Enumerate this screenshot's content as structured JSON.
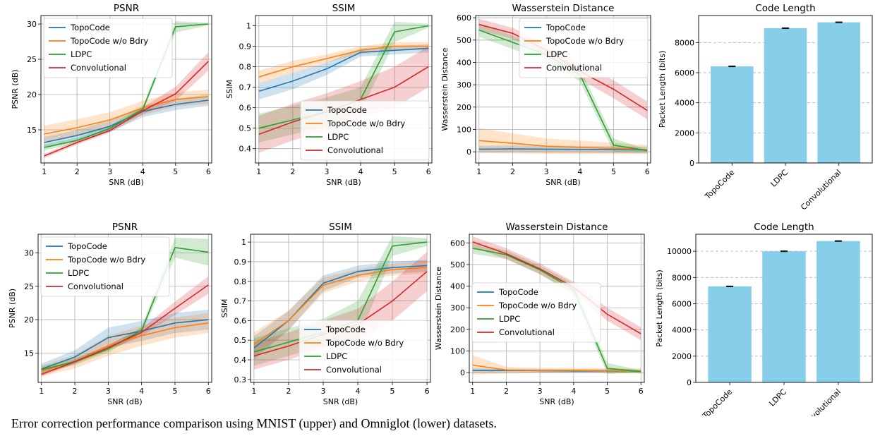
{
  "caption": "Error correction performance comparison using MNIST (upper) and Omniglot (lower) datasets.",
  "colors": {
    "TopoCode": "#1f77b4",
    "TopoCode w/o Bdry": "#ff7f0e",
    "LDPC": "#2ca02c",
    "Convolutional": "#d62728",
    "bar": "#87ceeb"
  },
  "chart_data": [
    {
      "type": "line",
      "row": "upper",
      "title": "PSNR",
      "xlabel": "SNR (dB)",
      "ylabel": "PSNR (dB)",
      "xlim": [
        0.9,
        6.1
      ],
      "ylim": [
        10.3,
        31.2
      ],
      "xticks": [
        1,
        2,
        3,
        4,
        5,
        6
      ],
      "yticks": [
        15,
        20,
        25,
        30
      ],
      "grid": true,
      "legend": "top-left",
      "x": [
        1,
        2,
        3,
        4,
        5,
        6
      ],
      "series": [
        {
          "name": "TopoCode",
          "values": [
            13.2,
            14.2,
            15.5,
            17.6,
            18.6,
            19.2
          ],
          "band": [
            0.8,
            0.8,
            0.8,
            0.8,
            0.8,
            0.8
          ]
        },
        {
          "name": "TopoCode w/o Bdry",
          "values": [
            14.4,
            15.3,
            16.4,
            18.1,
            19.3,
            19.7
          ],
          "band": [
            1.2,
            1.2,
            1.1,
            1.0,
            1.0,
            1.0
          ]
        },
        {
          "name": "LDPC",
          "values": [
            12.5,
            13.5,
            15.2,
            17.9,
            29.6,
            30.0
          ],
          "band": [
            0.4,
            0.4,
            0.4,
            0.4,
            0.8,
            0.2
          ]
        },
        {
          "name": "Convolutional",
          "values": [
            11.3,
            13.2,
            14.9,
            17.7,
            20.1,
            24.7
          ],
          "band": [
            0.3,
            0.3,
            0.3,
            0.5,
            1.0,
            1.3
          ]
        }
      ]
    },
    {
      "type": "line",
      "row": "upper",
      "title": "SSIM",
      "xlabel": "SNR (dB)",
      "ylabel": "SSIM",
      "xlim": [
        0.9,
        6.1
      ],
      "ylim": [
        0.33,
        1.05
      ],
      "xticks": [
        1,
        2,
        3,
        4,
        5,
        6
      ],
      "yticks": [
        0.4,
        0.5,
        0.6,
        0.7,
        0.8,
        0.9,
        1.0
      ],
      "grid": true,
      "legend": "bottom-right",
      "x": [
        1,
        2,
        3,
        4,
        5,
        6
      ],
      "series": [
        {
          "name": "TopoCode",
          "values": [
            0.68,
            0.73,
            0.79,
            0.87,
            0.88,
            0.89
          ],
          "band": [
            0.04,
            0.04,
            0.03,
            0.02,
            0.02,
            0.02
          ]
        },
        {
          "name": "TopoCode w/o Bdry",
          "values": [
            0.75,
            0.8,
            0.84,
            0.88,
            0.9,
            0.9
          ],
          "band": [
            0.03,
            0.03,
            0.02,
            0.02,
            0.02,
            0.02
          ]
        },
        {
          "name": "LDPC",
          "values": [
            0.5,
            0.54,
            0.58,
            0.64,
            0.97,
            1.0
          ],
          "band": [
            0.07,
            0.07,
            0.07,
            0.06,
            0.05,
            0.01
          ]
        },
        {
          "name": "Convolutional",
          "values": [
            0.47,
            0.53,
            0.58,
            0.64,
            0.7,
            0.8
          ],
          "band": [
            0.09,
            0.09,
            0.09,
            0.09,
            0.1,
            0.1
          ]
        }
      ]
    },
    {
      "type": "line",
      "row": "upper",
      "title": "Wasserstein Distance",
      "xlabel": "SNR (dB)",
      "ylabel": "Wasserstein Distance",
      "xlim": [
        0.9,
        6.1
      ],
      "ylim": [
        -50,
        610
      ],
      "xticks": [
        1,
        2,
        3,
        4,
        5,
        6
      ],
      "yticks": [
        0,
        100,
        200,
        300,
        400,
        500,
        600
      ],
      "grid": true,
      "legend": "top-right",
      "x": [
        1,
        2,
        3,
        4,
        5,
        6
      ],
      "series": [
        {
          "name": "TopoCode",
          "values": [
            12,
            13,
            12,
            11,
            10,
            8
          ],
          "band": [
            15,
            15,
            15,
            15,
            15,
            15
          ]
        },
        {
          "name": "TopoCode w/o Bdry",
          "values": [
            50,
            38,
            25,
            20,
            15,
            10
          ],
          "band": [
            55,
            45,
            35,
            30,
            25,
            20
          ]
        },
        {
          "name": "LDPC",
          "values": [
            545,
            490,
            435,
            345,
            30,
            5
          ],
          "band": [
            30,
            30,
            30,
            30,
            30,
            5
          ]
        },
        {
          "name": "Convolutional",
          "values": [
            570,
            530,
            455,
            360,
            280,
            185
          ],
          "band": [
            25,
            25,
            30,
            35,
            40,
            40
          ]
        }
      ]
    },
    {
      "type": "bar",
      "row": "upper",
      "title": "Code Length",
      "xlabel": "",
      "ylabel": "Packet Length (bits)",
      "ylim": [
        0,
        9800
      ],
      "yticks": [
        0,
        2000,
        4000,
        6000,
        8000
      ],
      "grid": "y-dashed",
      "categories": [
        "TopoCode",
        "LDPC",
        "Convolutional"
      ],
      "values": [
        6420,
        8960,
        9350
      ],
      "errors": [
        25,
        25,
        25
      ]
    },
    {
      "type": "line",
      "row": "lower",
      "title": "PSNR",
      "xlabel": "SNR (dB)",
      "ylabel": "PSNR (dB)",
      "xlim": [
        0.9,
        6.1
      ],
      "ylim": [
        10.6,
        32.8
      ],
      "xticks": [
        1,
        2,
        3,
        4,
        5,
        6
      ],
      "yticks": [
        15,
        20,
        25,
        30
      ],
      "grid": true,
      "legend": "top-left",
      "x": [
        1,
        2,
        3,
        4,
        5,
        6
      ],
      "series": [
        {
          "name": "TopoCode",
          "values": [
            12.6,
            14.4,
            17.3,
            18.3,
            19.5,
            20.0
          ],
          "band": [
            0.8,
            1.0,
            1.5,
            1.5,
            1.5,
            1.5
          ]
        },
        {
          "name": "TopoCode w/o Bdry",
          "values": [
            12.3,
            13.7,
            16.1,
            17.6,
            18.8,
            19.5
          ],
          "band": [
            0.8,
            1.0,
            1.5,
            1.5,
            1.5,
            1.5
          ]
        },
        {
          "name": "LDPC",
          "values": [
            12.5,
            13.7,
            15.6,
            18.4,
            30.8,
            30.1
          ],
          "band": [
            0.5,
            0.5,
            0.5,
            0.5,
            1.5,
            2.0
          ]
        },
        {
          "name": "Convolutional",
          "values": [
            11.8,
            13.7,
            15.8,
            18.1,
            21.7,
            25.2
          ],
          "band": [
            0.3,
            0.3,
            0.4,
            0.6,
            1.0,
            1.3
          ]
        }
      ]
    },
    {
      "type": "line",
      "row": "lower",
      "title": "SSIM",
      "xlabel": "SNR (dB)",
      "ylabel": "SSIM",
      "xlim": [
        0.9,
        6.1
      ],
      "ylim": [
        0.285,
        1.04
      ],
      "xticks": [
        1,
        2,
        3,
        4,
        5,
        6
      ],
      "yticks": [
        0.3,
        0.4,
        0.5,
        0.6,
        0.7,
        0.8,
        0.9,
        1.0
      ],
      "grid": true,
      "legend": "bottom-right",
      "x": [
        1,
        2,
        3,
        4,
        5,
        6
      ],
      "series": [
        {
          "name": "TopoCode",
          "values": [
            0.46,
            0.6,
            0.79,
            0.85,
            0.87,
            0.88
          ],
          "band": [
            0.06,
            0.05,
            0.04,
            0.03,
            0.03,
            0.03
          ]
        },
        {
          "name": "TopoCode w/o Bdry",
          "values": [
            0.48,
            0.6,
            0.78,
            0.83,
            0.86,
            0.87
          ],
          "band": [
            0.06,
            0.05,
            0.04,
            0.03,
            0.03,
            0.03
          ]
        },
        {
          "name": "LDPC",
          "values": [
            0.44,
            0.49,
            0.54,
            0.6,
            0.98,
            1.0
          ],
          "band": [
            0.07,
            0.07,
            0.07,
            0.1,
            0.05,
            0.02
          ]
        },
        {
          "name": "Convolutional",
          "values": [
            0.42,
            0.47,
            0.53,
            0.58,
            0.7,
            0.85
          ],
          "band": [
            0.07,
            0.07,
            0.07,
            0.08,
            0.1,
            0.1
          ]
        }
      ]
    },
    {
      "type": "line",
      "row": "lower",
      "title": "Wasserstein Distance",
      "xlabel": "SNR (dB)",
      "ylabel": "Wasserstein Distance",
      "xlim": [
        0.9,
        6.1
      ],
      "ylim": [
        -45,
        640
      ],
      "xticks": [
        1,
        2,
        3,
        4,
        5,
        6
      ],
      "yticks": [
        0,
        100,
        200,
        300,
        400,
        500,
        600
      ],
      "grid": true,
      "legend": "center-left",
      "x": [
        1,
        2,
        3,
        4,
        5,
        6
      ],
      "series": [
        {
          "name": "TopoCode",
          "values": [
            10,
            10,
            9,
            8,
            8,
            7
          ],
          "band": [
            10,
            8,
            8,
            8,
            8,
            8
          ]
        },
        {
          "name": "TopoCode w/o Bdry",
          "values": [
            35,
            12,
            10,
            10,
            9,
            8
          ],
          "band": [
            45,
            15,
            12,
            12,
            12,
            12
          ]
        },
        {
          "name": "LDPC",
          "values": [
            575,
            545,
            475,
            385,
            20,
            5
          ],
          "band": [
            25,
            20,
            20,
            25,
            25,
            5
          ]
        },
        {
          "name": "Convolutional",
          "values": [
            605,
            550,
            480,
            395,
            270,
            180
          ],
          "band": [
            25,
            25,
            25,
            25,
            30,
            30
          ]
        }
      ]
    },
    {
      "type": "bar",
      "row": "lower",
      "title": "Code Length",
      "xlabel": "",
      "ylabel": "Packet Length (bits)",
      "ylim": [
        0,
        11300
      ],
      "yticks": [
        0,
        2000,
        4000,
        6000,
        8000,
        10000
      ],
      "grid": "y-dashed",
      "categories": [
        "TopoCode",
        "LDPC",
        "Convolutional"
      ],
      "values": [
        7320,
        10000,
        10780
      ],
      "errors": [
        30,
        30,
        30
      ]
    }
  ]
}
